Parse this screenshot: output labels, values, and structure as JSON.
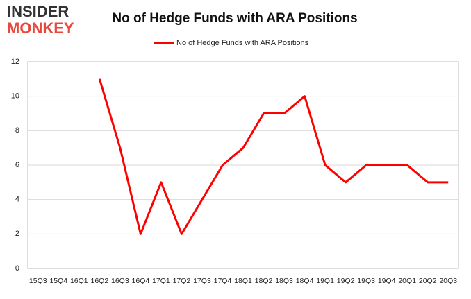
{
  "logo": {
    "line1": "INSIDER",
    "line2": "MONKEY"
  },
  "chart_data": {
    "type": "line",
    "title": "No of Hedge Funds with ARA Positions",
    "categories": [
      "15Q3",
      "15Q4",
      "16Q1",
      "16Q2",
      "16Q3",
      "16Q4",
      "17Q1",
      "17Q2",
      "17Q3",
      "17Q4",
      "18Q1",
      "18Q2",
      "18Q3",
      "18Q4",
      "19Q1",
      "19Q2",
      "19Q3",
      "19Q4",
      "20Q1",
      "20Q2",
      "20Q3"
    ],
    "series": [
      {
        "name": "No of Hedge Funds with ARA Positions",
        "color": "#ff0000",
        "values": [
          null,
          null,
          null,
          11,
          7,
          2,
          5,
          2,
          4,
          6,
          7,
          9,
          9,
          10,
          6,
          5,
          6,
          6,
          6,
          5,
          5
        ]
      }
    ],
    "ylim": [
      0,
      12
    ],
    "yticks": [
      0,
      2,
      4,
      6,
      8,
      10,
      12
    ],
    "grid": true,
    "legend": "top"
  }
}
